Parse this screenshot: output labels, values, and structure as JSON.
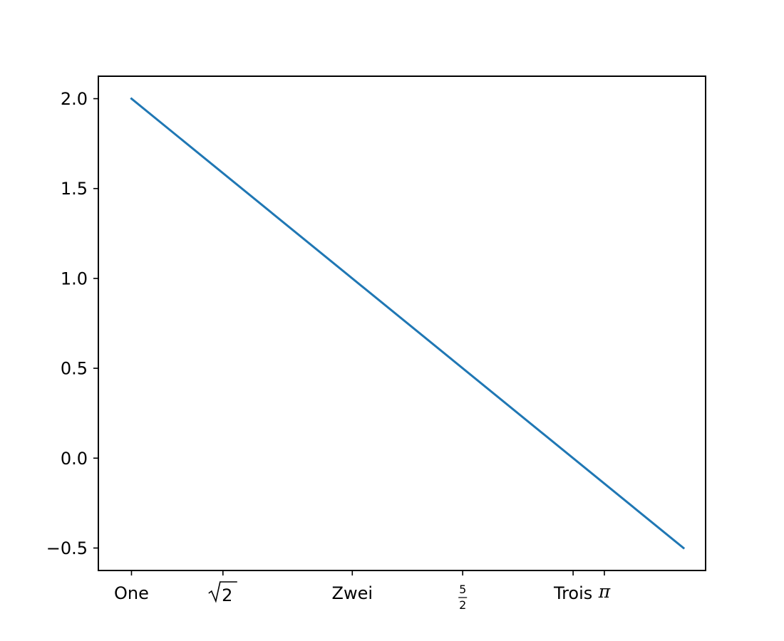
{
  "chart_data": {
    "type": "line",
    "title": "",
    "xlabel": "",
    "ylabel": "",
    "xlim": [
      0.85,
      3.6
    ],
    "ylim": [
      -0.625,
      2.125
    ],
    "grid": false,
    "x_ticks": [
      {
        "value": 1.0,
        "label": "One",
        "kind": "text"
      },
      {
        "value": 1.4142,
        "label": "√2",
        "kind": "sqrt",
        "radicand": "2"
      },
      {
        "value": 2.0,
        "label": "Zwei",
        "kind": "text"
      },
      {
        "value": 2.5,
        "label": "5/2",
        "kind": "frac",
        "numerator": "5",
        "denominator": "2"
      },
      {
        "value": 3.0,
        "label": "Trois",
        "kind": "text"
      },
      {
        "value": 3.14159,
        "label": "π",
        "kind": "pi"
      }
    ],
    "y_ticks": [
      {
        "value": 2.0,
        "label": "2.0"
      },
      {
        "value": 1.5,
        "label": "1.5"
      },
      {
        "value": 1.0,
        "label": "1.0"
      },
      {
        "value": 0.5,
        "label": "0.5"
      },
      {
        "value": 0.0,
        "label": "0.0"
      },
      {
        "value": -0.5,
        "label": "−0.5"
      }
    ],
    "series": [
      {
        "color": "#1f77b4",
        "x": [
          1.0,
          3.5
        ],
        "y": [
          2.0,
          -0.5
        ]
      }
    ]
  }
}
